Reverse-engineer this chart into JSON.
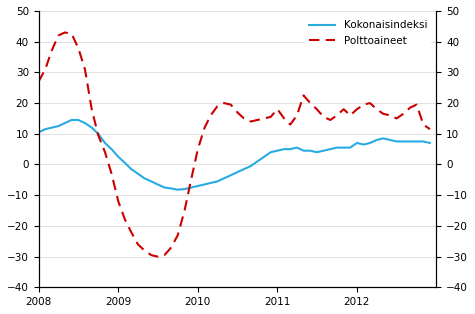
{
  "title": "",
  "ylim": [
    -40,
    50
  ],
  "yticks": [
    -40,
    -30,
    -20,
    -10,
    0,
    10,
    20,
    30,
    40,
    50
  ],
  "legend_labels": [
    "Kokonaisindeksi",
    "Polttoaineet"
  ],
  "line1_color": "#29ABE2",
  "line2_color": "#CC0000",
  "kokonaisindeksi": [
    10.5,
    11.5,
    12.0,
    12.5,
    13.5,
    14.5,
    14.5,
    13.5,
    12.0,
    10.0,
    7.0,
    5.0,
    2.5,
    0.5,
    -1.5,
    -3.0,
    -4.5,
    -5.5,
    -6.5,
    -7.5,
    -7.8,
    -8.2,
    -8.0,
    -7.5,
    -7.0,
    -6.5,
    -6.0,
    -5.5,
    -4.5,
    -3.5,
    -2.5,
    -1.5,
    -0.5,
    1.0,
    2.5,
    4.0,
    4.5,
    5.0,
    5.0,
    5.5,
    4.5,
    4.5,
    4.0,
    4.5,
    5.0,
    5.5,
    5.5,
    5.5,
    7.0,
    6.5,
    7.0,
    8.0,
    8.5,
    8.0,
    7.5,
    7.5,
    7.5,
    7.5,
    7.5,
    7.0
  ],
  "polttoaineet": [
    27.0,
    31.0,
    37.0,
    42.0,
    43.0,
    42.5,
    38.0,
    31.0,
    18.0,
    9.5,
    4.0,
    -3.0,
    -12.0,
    -18.0,
    -22.0,
    -26.0,
    -28.0,
    -29.5,
    -30.0,
    -29.5,
    -27.0,
    -23.0,
    -15.0,
    -5.0,
    5.0,
    12.0,
    16.0,
    19.0,
    20.0,
    19.5,
    17.0,
    15.0,
    14.0,
    14.5,
    15.0,
    15.5,
    18.0,
    15.0,
    13.0,
    16.0,
    22.5,
    20.0,
    18.0,
    15.5,
    14.5,
    16.0,
    18.0,
    16.0,
    18.0,
    19.5,
    20.0,
    18.0,
    16.5,
    16.0,
    15.0,
    16.5,
    18.5,
    19.5,
    13.0,
    11.5
  ]
}
